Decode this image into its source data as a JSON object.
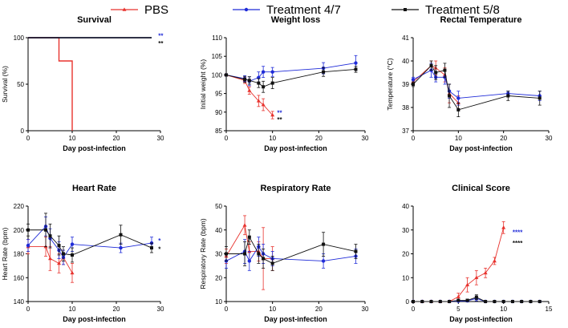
{
  "legend": [
    {
      "name": "PBS",
      "color": "#e8332e",
      "marker": "triangle"
    },
    {
      "name": "Treatment 4/7",
      "color": "#1f2bd8",
      "marker": "circle"
    },
    {
      "name": "Treatment 5/8",
      "color": "#111111",
      "marker": "square"
    }
  ],
  "chart_data": [
    {
      "type": "line",
      "id": "survival",
      "title": "Survival",
      "xlabel": "Day post-infection",
      "ylabel": "Survival (%)",
      "xlim": [
        0,
        30
      ],
      "ylim": [
        0,
        100
      ],
      "xticks": [
        0,
        10,
        20,
        30
      ],
      "yticks": [
        0,
        50,
        100
      ],
      "step": true,
      "series": [
        {
          "name": "PBS",
          "x": [
            0,
            7,
            7,
            10,
            10
          ],
          "y": [
            100,
            100,
            75,
            75,
            0
          ]
        },
        {
          "name": "Treatment 4/7",
          "x": [
            0,
            28
          ],
          "y": [
            100,
            100
          ]
        },
        {
          "name": "Treatment 5/8",
          "x": [
            0,
            28
          ],
          "y": [
            100,
            100
          ]
        }
      ],
      "annotations": [
        {
          "text": "**",
          "x": 29.5,
          "y": 102,
          "color": "#1f2bd8"
        },
        {
          "text": "**",
          "x": 29.5,
          "y": 94,
          "color": "#111111"
        }
      ]
    },
    {
      "type": "line",
      "id": "weight",
      "title": "Weight loss",
      "xlabel": "Day post-infection",
      "ylabel": "Initial weight (%)",
      "xlim": [
        0,
        30
      ],
      "ylim": [
        85,
        110
      ],
      "xticks": [
        0,
        10,
        20,
        30
      ],
      "yticks": [
        85,
        90,
        95,
        100,
        105,
        110
      ],
      "series": [
        {
          "name": "PBS",
          "x": [
            0,
            4,
            5,
            7,
            8,
            10
          ],
          "y": [
            100,
            98.5,
            95.8,
            93.0,
            92.0,
            89.2
          ],
          "err": [
            0.3,
            0.8,
            1.0,
            1.5,
            1.6,
            1.0
          ]
        },
        {
          "name": "Treatment 4/7",
          "x": [
            0,
            4,
            5,
            7,
            8,
            10,
            21,
            28
          ],
          "y": [
            100,
            99.0,
            98.3,
            99.3,
            100.8,
            100.8,
            101.8,
            103.2
          ],
          "err": [
            0.3,
            0.8,
            1.2,
            1.5,
            1.5,
            1.2,
            1.5,
            2.0
          ]
        },
        {
          "name": "Treatment 5/8",
          "x": [
            0,
            4,
            5,
            7,
            8,
            10,
            21,
            28
          ],
          "y": [
            100,
            98.8,
            98.5,
            97.8,
            96.8,
            97.8,
            100.8,
            101.5
          ],
          "err": [
            0.3,
            0.8,
            1.0,
            1.2,
            1.5,
            1.5,
            1.2,
            0.8
          ]
        }
      ],
      "annotations": [
        {
          "text": "**",
          "x": 11,
          "y": 89.8,
          "color": "#1f2bd8"
        },
        {
          "text": "**",
          "x": 11,
          "y": 88.0,
          "color": "#111111"
        }
      ]
    },
    {
      "type": "line",
      "id": "temp",
      "title": "Rectal Temperature",
      "xlabel": "Day post-infection",
      "ylabel": "Temperature (°C)",
      "xlim": [
        0,
        30
      ],
      "ylim": [
        37,
        41
      ],
      "xticks": [
        0,
        10,
        20,
        30
      ],
      "yticks": [
        37,
        38,
        39,
        40,
        41
      ],
      "series": [
        {
          "name": "PBS",
          "x": [
            0,
            4,
            5,
            7,
            8,
            10
          ],
          "y": [
            39.1,
            39.8,
            39.7,
            39.4,
            38.6,
            38.2
          ],
          "err": [
            0.1,
            0.2,
            0.3,
            0.3,
            0.4,
            0.3
          ]
        },
        {
          "name": "Treatment 4/7",
          "x": [
            0,
            4,
            5,
            7,
            8,
            10,
            21,
            28
          ],
          "y": [
            39.2,
            39.6,
            39.3,
            39.3,
            38.7,
            38.4,
            38.6,
            38.5
          ],
          "err": [
            0.1,
            0.3,
            0.2,
            0.3,
            0.3,
            0.3,
            0.1,
            0.2
          ]
        },
        {
          "name": "Treatment 5/8",
          "x": [
            0,
            4,
            5,
            7,
            8,
            10,
            21,
            28
          ],
          "y": [
            39.0,
            39.8,
            39.5,
            39.6,
            38.5,
            37.9,
            38.5,
            38.4
          ],
          "err": [
            0.1,
            0.2,
            0.3,
            0.3,
            0.5,
            0.3,
            0.2,
            0.3
          ]
        }
      ]
    },
    {
      "type": "line",
      "id": "heart",
      "title": "Heart Rate",
      "xlabel": "Day post-infection",
      "ylabel": "Heart Rate (bpm)",
      "xlim": [
        0,
        30
      ],
      "ylim": [
        140,
        220
      ],
      "xticks": [
        0,
        10,
        20,
        30
      ],
      "yticks": [
        140,
        160,
        180,
        200,
        220
      ],
      "series": [
        {
          "name": "PBS",
          "x": [
            0,
            4,
            5,
            7,
            8,
            10
          ],
          "y": [
            186,
            186,
            176,
            172,
            177,
            164
          ],
          "err": [
            6,
            8,
            10,
            8,
            6,
            8
          ]
        },
        {
          "name": "Treatment 4/7",
          "x": [
            0,
            4,
            5,
            7,
            8,
            10,
            21,
            28
          ],
          "y": [
            187,
            203,
            193,
            183,
            177,
            188,
            185,
            189
          ],
          "err": [
            5,
            8,
            8,
            7,
            6,
            6,
            4,
            5
          ]
        },
        {
          "name": "Treatment 5/8",
          "x": [
            0,
            4,
            5,
            7,
            8,
            10,
            21,
            28
          ],
          "y": [
            200,
            200,
            195,
            187,
            180,
            179,
            196,
            185
          ],
          "err": [
            5,
            14,
            10,
            8,
            6,
            6,
            8,
            4
          ]
        }
      ],
      "annotations": [
        {
          "text": "*",
          "x": 29.5,
          "y": 191,
          "color": "#1f2bd8"
        },
        {
          "text": "*",
          "x": 29.5,
          "y": 184,
          "color": "#111111"
        }
      ]
    },
    {
      "type": "line",
      "id": "resp",
      "title": "Respiratory Rate",
      "xlabel": "Day post-infection",
      "ylabel": "Respiratory Rate (bpm)",
      "xlim": [
        0,
        30
      ],
      "ylim": [
        10,
        50
      ],
      "xticks": [
        0,
        10,
        20,
        30
      ],
      "yticks": [
        10,
        20,
        30,
        40,
        50
      ],
      "series": [
        {
          "name": "PBS",
          "x": [
            0,
            4,
            5,
            7,
            8,
            10
          ],
          "y": [
            29,
            42,
            31,
            31,
            28,
            28
          ],
          "err": [
            3,
            4,
            4,
            4,
            13,
            5
          ]
        },
        {
          "name": "Treatment 4/7",
          "x": [
            0,
            4,
            5,
            7,
            8,
            10,
            21,
            28
          ],
          "y": [
            27,
            31,
            27,
            33,
            30,
            28,
            27,
            29
          ],
          "err": [
            3,
            5,
            4,
            4,
            4,
            3,
            3,
            3
          ]
        },
        {
          "name": "Treatment 5/8",
          "x": [
            0,
            4,
            5,
            7,
            8,
            10,
            21,
            28
          ],
          "y": [
            30,
            30,
            37,
            30,
            28,
            26,
            34,
            31
          ],
          "err": [
            3,
            5,
            3,
            4,
            4,
            3,
            5,
            3
          ]
        }
      ]
    },
    {
      "type": "line",
      "id": "clinical",
      "title": "Clinical Score",
      "xlabel": "Day post-infection",
      "ylabel": "",
      "xlim": [
        0,
        15
      ],
      "ylim": [
        0,
        40
      ],
      "xticks": [
        0,
        5,
        10,
        15
      ],
      "yticks": [
        0,
        10,
        20,
        30,
        40
      ],
      "series": [
        {
          "name": "PBS",
          "x": [
            0,
            1,
            2,
            3,
            4,
            5,
            6,
            7,
            8,
            9,
            10
          ],
          "y": [
            0,
            0,
            0,
            0,
            0,
            2,
            7,
            10,
            12,
            17,
            31
          ],
          "err": [
            0,
            0,
            0,
            0,
            0,
            1.5,
            3,
            3,
            2,
            1.5,
            2.5
          ]
        },
        {
          "name": "Treatment 4/7",
          "x": [
            0,
            1,
            2,
            3,
            4,
            5,
            6,
            7,
            8,
            9,
            10,
            11,
            12,
            13,
            14
          ],
          "y": [
            0,
            0,
            0,
            0,
            0,
            0.2,
            0.3,
            1.3,
            0,
            0,
            0,
            0,
            0,
            0,
            0
          ],
          "err": [
            0,
            0,
            0,
            0,
            0,
            0.3,
            0.5,
            1,
            0,
            0,
            0,
            0,
            0,
            0,
            0
          ]
        },
        {
          "name": "Treatment 5/8",
          "x": [
            0,
            1,
            2,
            3,
            4,
            5,
            6,
            7,
            8,
            9,
            10,
            11,
            12,
            13,
            14
          ],
          "y": [
            0,
            0,
            0,
            0,
            0,
            0.5,
            0.5,
            1.8,
            0,
            0,
            0,
            0,
            0,
            0,
            0
          ],
          "err": [
            0,
            0,
            0,
            0,
            0,
            0.5,
            0.5,
            1,
            0,
            0,
            0,
            0,
            0,
            0,
            0
          ]
        }
      ],
      "annotations": [
        {
          "text": "****",
          "x": 11,
          "y": 29,
          "color": "#1f2bd8"
        },
        {
          "text": "****",
          "x": 11,
          "y": 24.5,
          "color": "#111111"
        }
      ]
    }
  ]
}
